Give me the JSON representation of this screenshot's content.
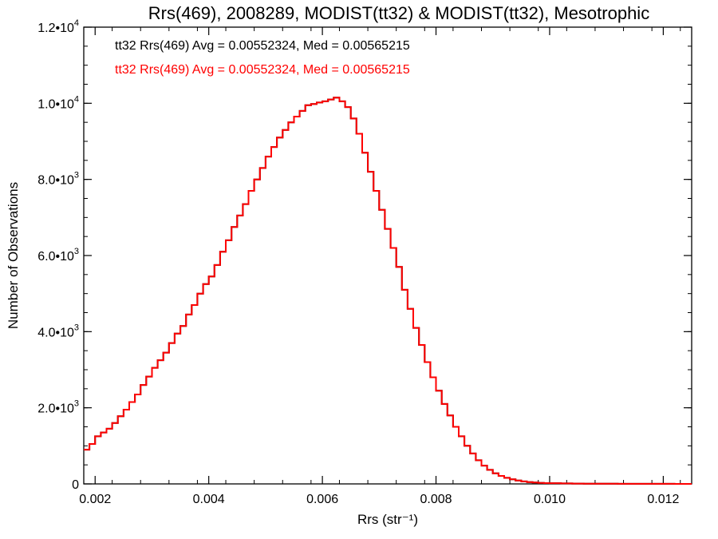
{
  "chart_data": {
    "type": "line",
    "title": "Rrs(469), 2008289, MODIST(tt32) & MODIST(tt32), Mesotrophic",
    "xlabel": "Rrs (str⁻¹)",
    "ylabel": "Number of Observations",
    "xlim": [
      0.0018,
      0.0125
    ],
    "ylim": [
      0,
      12000
    ],
    "x_ticks": [
      {
        "value": 0.002,
        "label": "0.002"
      },
      {
        "value": 0.004,
        "label": "0.004"
      },
      {
        "value": 0.006,
        "label": "0.006"
      },
      {
        "value": 0.008,
        "label": "0.008"
      },
      {
        "value": 0.01,
        "label": "0.010"
      },
      {
        "value": 0.012,
        "label": "0.012"
      }
    ],
    "y_ticks": [
      {
        "value": 0,
        "mant": "0",
        "exp": ""
      },
      {
        "value": 2000,
        "mant": "2.0•10",
        "exp": "3"
      },
      {
        "value": 4000,
        "mant": "4.0•10",
        "exp": "3"
      },
      {
        "value": 6000,
        "mant": "6.0•10",
        "exp": "3"
      },
      {
        "value": 8000,
        "mant": "8.0•10",
        "exp": "3"
      },
      {
        "value": 10000,
        "mant": "1.0•10",
        "exp": "4"
      },
      {
        "value": 12000,
        "mant": "1.2•10",
        "exp": "4"
      }
    ],
    "grid": false,
    "legend_position": "top-left",
    "colors": {
      "series_1": "#000000",
      "series_2": "#ff0000"
    },
    "annotations": [
      "tt32 Rrs(469) Avg = 0.00552324, Med = 0.00565215",
      "tt32 Rrs(469) Avg = 0.00552324, Med = 0.00565215"
    ],
    "x": [
      0.0018,
      0.0019,
      0.002,
      0.0021,
      0.0022,
      0.0023,
      0.0024,
      0.0025,
      0.0026,
      0.0027,
      0.0028,
      0.0029,
      0.003,
      0.0031,
      0.0032,
      0.0033,
      0.0034,
      0.0035,
      0.0036,
      0.0037,
      0.0038,
      0.0039,
      0.004,
      0.0041,
      0.0042,
      0.0043,
      0.0044,
      0.0045,
      0.0046,
      0.0047,
      0.0048,
      0.0049,
      0.005,
      0.0051,
      0.0052,
      0.0053,
      0.0054,
      0.0055,
      0.0056,
      0.0057,
      0.0058,
      0.0059,
      0.006,
      0.0061,
      0.0062,
      0.0063,
      0.0064,
      0.0065,
      0.0066,
      0.0067,
      0.0068,
      0.0069,
      0.007,
      0.0071,
      0.0072,
      0.0073,
      0.0074,
      0.0075,
      0.0076,
      0.0077,
      0.0078,
      0.0079,
      0.008,
      0.0081,
      0.0082,
      0.0083,
      0.0084,
      0.0085,
      0.0086,
      0.0087,
      0.0088,
      0.0089,
      0.009,
      0.0091,
      0.0092,
      0.0093,
      0.0094,
      0.0095,
      0.0096,
      0.0097,
      0.0098,
      0.0099,
      0.01,
      0.0102,
      0.0104,
      0.0106,
      0.0108,
      0.011,
      0.0112,
      0.0114,
      0.0116,
      0.0118,
      0.012,
      0.0122,
      0.0125
    ],
    "series": [
      {
        "values": [
          900,
          1050,
          1250,
          1350,
          1450,
          1600,
          1780,
          1950,
          2150,
          2350,
          2600,
          2820,
          3050,
          3250,
          3450,
          3700,
          3950,
          4150,
          4450,
          4700,
          5000,
          5250,
          5450,
          5750,
          6100,
          6400,
          6750,
          7050,
          7350,
          7700,
          8000,
          8300,
          8600,
          8850,
          9100,
          9300,
          9500,
          9650,
          9800,
          9950,
          9980,
          10020,
          10050,
          10100,
          10150,
          10050,
          9900,
          9600,
          9200,
          8700,
          8200,
          7700,
          7200,
          6700,
          6200,
          5700,
          5100,
          4600,
          4100,
          3650,
          3200,
          2800,
          2450,
          2100,
          1800,
          1500,
          1250,
          1000,
          800,
          620,
          480,
          370,
          280,
          210,
          160,
          120,
          90,
          65,
          48,
          36,
          28,
          22,
          18,
          12,
          8,
          6,
          5,
          4,
          3,
          3,
          2,
          2,
          2,
          1,
          1
        ]
      },
      {
        "values": [
          900,
          1050,
          1250,
          1350,
          1450,
          1600,
          1780,
          1950,
          2150,
          2350,
          2600,
          2820,
          3050,
          3250,
          3450,
          3700,
          3950,
          4150,
          4450,
          4700,
          5000,
          5250,
          5450,
          5750,
          6100,
          6400,
          6750,
          7050,
          7350,
          7700,
          8000,
          8300,
          8600,
          8850,
          9100,
          9300,
          9500,
          9650,
          9800,
          9950,
          9980,
          10020,
          10050,
          10100,
          10150,
          10050,
          9900,
          9600,
          9200,
          8700,
          8200,
          7700,
          7200,
          6700,
          6200,
          5700,
          5100,
          4600,
          4100,
          3650,
          3200,
          2800,
          2450,
          2100,
          1800,
          1500,
          1250,
          1000,
          800,
          620,
          480,
          370,
          280,
          210,
          160,
          120,
          90,
          65,
          48,
          36,
          28,
          22,
          18,
          12,
          8,
          6,
          5,
          4,
          3,
          3,
          2,
          2,
          2,
          1,
          1
        ]
      }
    ]
  }
}
